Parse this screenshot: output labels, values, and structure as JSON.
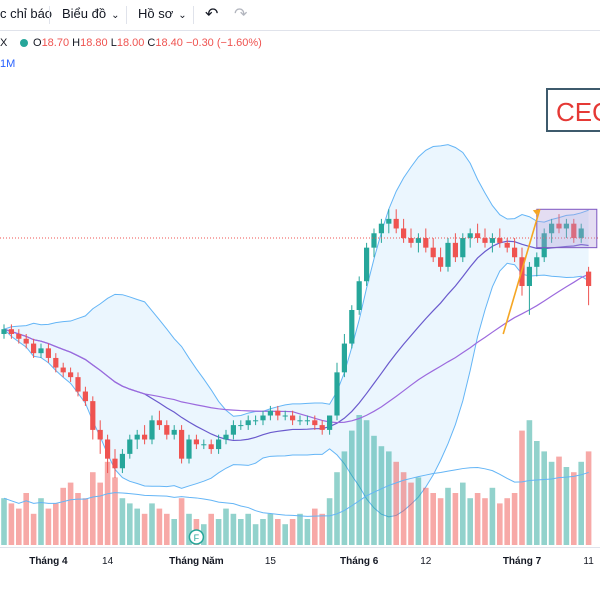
{
  "toolbar": {
    "indicators_label": "c chỉ báo",
    "chart_label": "Biểu đồ",
    "templates_label": "Hồ sơ",
    "undo_icon": "undo-icon",
    "redo_icon": "redo-icon",
    "chevron_icon": "chevron-down-icon"
  },
  "legend": {
    "symbol": "X",
    "open_key": "O",
    "open": "18.70",
    "high_key": "H",
    "high": "18.80",
    "low_key": "L",
    "low": "18.00",
    "close_key": "C",
    "close": "18.40",
    "change": "−0.30 (−1.60%)",
    "interval": "1M"
  },
  "annotation": {
    "text": "CEO"
  },
  "colors": {
    "up": "#26a69a",
    "down": "#ef5350",
    "bb_fill": "#e3f2fd",
    "bb_line": "#64b5f6",
    "ma_short": "#6a5acd",
    "ma_long": "#9c6ade",
    "arrow": "#f5a623",
    "box": "#b39ddb",
    "dotted_line": "#ef5350"
  },
  "x_axis": {
    "ticks": [
      {
        "label": "Tháng 4",
        "bold": true
      },
      {
        "label": "14",
        "bold": false
      },
      {
        "label": "Tháng Năm",
        "bold": true
      },
      {
        "label": "15",
        "bold": false
      },
      {
        "label": "Tháng 6",
        "bold": true
      },
      {
        "label": "12",
        "bold": false
      },
      {
        "label": "Tháng 7",
        "bold": true
      },
      {
        "label": "11",
        "bold": false
      }
    ]
  },
  "event_marker": {
    "text": "F"
  },
  "chart_data": {
    "type": "candlestick",
    "candles": [
      [
        17.4,
        17.6,
        17.3,
        17.5
      ],
      [
        17.5,
        17.6,
        17.3,
        17.4
      ],
      [
        17.4,
        17.5,
        17.2,
        17.3
      ],
      [
        17.3,
        17.4,
        17.1,
        17.2
      ],
      [
        17.2,
        17.3,
        16.9,
        17.0
      ],
      [
        17.0,
        17.2,
        16.9,
        17.1
      ],
      [
        17.1,
        17.2,
        16.8,
        16.9
      ],
      [
        16.9,
        17.0,
        16.6,
        16.7
      ],
      [
        16.7,
        16.8,
        16.5,
        16.6
      ],
      [
        16.6,
        16.7,
        16.4,
        16.5
      ],
      [
        16.5,
        16.6,
        16.1,
        16.2
      ],
      [
        16.2,
        16.3,
        15.9,
        16.0
      ],
      [
        16.0,
        16.1,
        15.2,
        15.4
      ],
      [
        15.4,
        15.6,
        14.9,
        15.2
      ],
      [
        15.2,
        15.3,
        14.5,
        14.8
      ],
      [
        14.8,
        15.0,
        14.4,
        14.6
      ],
      [
        14.6,
        15.0,
        14.5,
        14.9
      ],
      [
        14.9,
        15.3,
        14.8,
        15.2
      ],
      [
        15.2,
        15.4,
        15.0,
        15.3
      ],
      [
        15.3,
        15.5,
        15.1,
        15.2
      ],
      [
        15.2,
        15.7,
        15.1,
        15.6
      ],
      [
        15.6,
        15.8,
        15.4,
        15.5
      ],
      [
        15.5,
        15.6,
        15.2,
        15.3
      ],
      [
        15.3,
        15.5,
        15.2,
        15.4
      ],
      [
        15.4,
        15.5,
        14.7,
        14.8
      ],
      [
        14.8,
        15.3,
        14.7,
        15.2
      ],
      [
        15.2,
        15.3,
        15.0,
        15.1
      ],
      [
        15.1,
        15.2,
        15.0,
        15.1
      ],
      [
        15.1,
        15.2,
        14.9,
        15.0
      ],
      [
        15.0,
        15.3,
        14.9,
        15.2
      ],
      [
        15.2,
        15.4,
        15.1,
        15.3
      ],
      [
        15.3,
        15.6,
        15.2,
        15.5
      ],
      [
        15.5,
        15.6,
        15.4,
        15.5
      ],
      [
        15.5,
        15.7,
        15.4,
        15.6
      ],
      [
        15.6,
        15.7,
        15.5,
        15.6
      ],
      [
        15.6,
        15.8,
        15.5,
        15.7
      ],
      [
        15.7,
        15.9,
        15.6,
        15.8
      ],
      [
        15.8,
        15.9,
        15.6,
        15.7
      ],
      [
        15.7,
        15.8,
        15.6,
        15.7
      ],
      [
        15.7,
        15.8,
        15.5,
        15.6
      ],
      [
        15.6,
        15.7,
        15.5,
        15.6
      ],
      [
        15.6,
        15.7,
        15.5,
        15.6
      ],
      [
        15.6,
        15.7,
        15.4,
        15.5
      ],
      [
        15.5,
        15.6,
        15.3,
        15.4
      ],
      [
        15.4,
        15.7,
        15.3,
        15.7
      ],
      [
        15.7,
        16.8,
        15.6,
        16.6
      ],
      [
        16.6,
        17.4,
        16.5,
        17.2
      ],
      [
        17.2,
        18.0,
        17.1,
        17.9
      ],
      [
        17.9,
        18.6,
        17.8,
        18.5
      ],
      [
        18.5,
        19.3,
        18.4,
        19.2
      ],
      [
        19.2,
        19.6,
        19.0,
        19.5
      ],
      [
        19.5,
        19.8,
        19.3,
        19.7
      ],
      [
        19.7,
        20.0,
        19.5,
        19.8
      ],
      [
        19.8,
        20.0,
        19.5,
        19.6
      ],
      [
        19.6,
        19.8,
        19.3,
        19.4
      ],
      [
        19.4,
        19.6,
        19.2,
        19.3
      ],
      [
        19.3,
        19.5,
        19.1,
        19.4
      ],
      [
        19.4,
        19.6,
        19.1,
        19.2
      ],
      [
        19.2,
        19.4,
        18.9,
        19.0
      ],
      [
        19.0,
        19.2,
        18.7,
        18.8
      ],
      [
        18.8,
        19.4,
        18.7,
        19.3
      ],
      [
        19.3,
        19.5,
        18.9,
        19.0
      ],
      [
        19.0,
        19.5,
        18.9,
        19.4
      ],
      [
        19.4,
        19.6,
        19.2,
        19.5
      ],
      [
        19.5,
        19.7,
        19.3,
        19.4
      ],
      [
        19.4,
        19.6,
        19.2,
        19.3
      ],
      [
        19.3,
        19.5,
        19.1,
        19.4
      ],
      [
        19.4,
        19.6,
        19.2,
        19.3
      ],
      [
        19.3,
        19.4,
        19.1,
        19.2
      ],
      [
        19.2,
        19.4,
        18.9,
        19.0
      ],
      [
        19.0,
        19.2,
        18.2,
        18.4
      ],
      [
        18.4,
        18.9,
        17.8,
        18.8
      ],
      [
        18.8,
        19.1,
        18.6,
        19.0
      ],
      [
        19.0,
        19.6,
        18.9,
        19.5
      ],
      [
        19.5,
        19.8,
        19.3,
        19.7
      ],
      [
        19.7,
        19.9,
        19.5,
        19.6
      ],
      [
        19.6,
        19.8,
        19.4,
        19.7
      ],
      [
        19.7,
        19.8,
        19.3,
        19.4
      ],
      [
        19.4,
        19.7,
        19.3,
        19.6
      ],
      [
        18.7,
        18.8,
        18.0,
        18.4
      ]
    ],
    "volume": [
      9,
      8,
      7,
      10,
      6,
      9,
      7,
      8,
      11,
      12,
      10,
      9,
      14,
      12,
      16,
      13,
      9,
      8,
      7,
      6,
      8,
      7,
      6,
      5,
      9,
      6,
      5,
      4,
      6,
      5,
      7,
      6,
      5,
      6,
      4,
      5,
      6,
      5,
      4,
      5,
      6,
      5,
      7,
      6,
      9,
      14,
      18,
      22,
      25,
      24,
      21,
      19,
      18,
      16,
      14,
      12,
      13,
      11,
      10,
      9,
      11,
      10,
      12,
      9,
      10,
      9,
      11,
      8,
      9,
      10,
      22,
      24,
      20,
      18,
      16,
      17,
      15,
      14,
      16,
      18
    ],
    "x_ticks": [
      "Tháng 4",
      "14",
      "Tháng Năm",
      "15",
      "Tháng 6",
      "12",
      "Tháng 7",
      "11"
    ]
  }
}
